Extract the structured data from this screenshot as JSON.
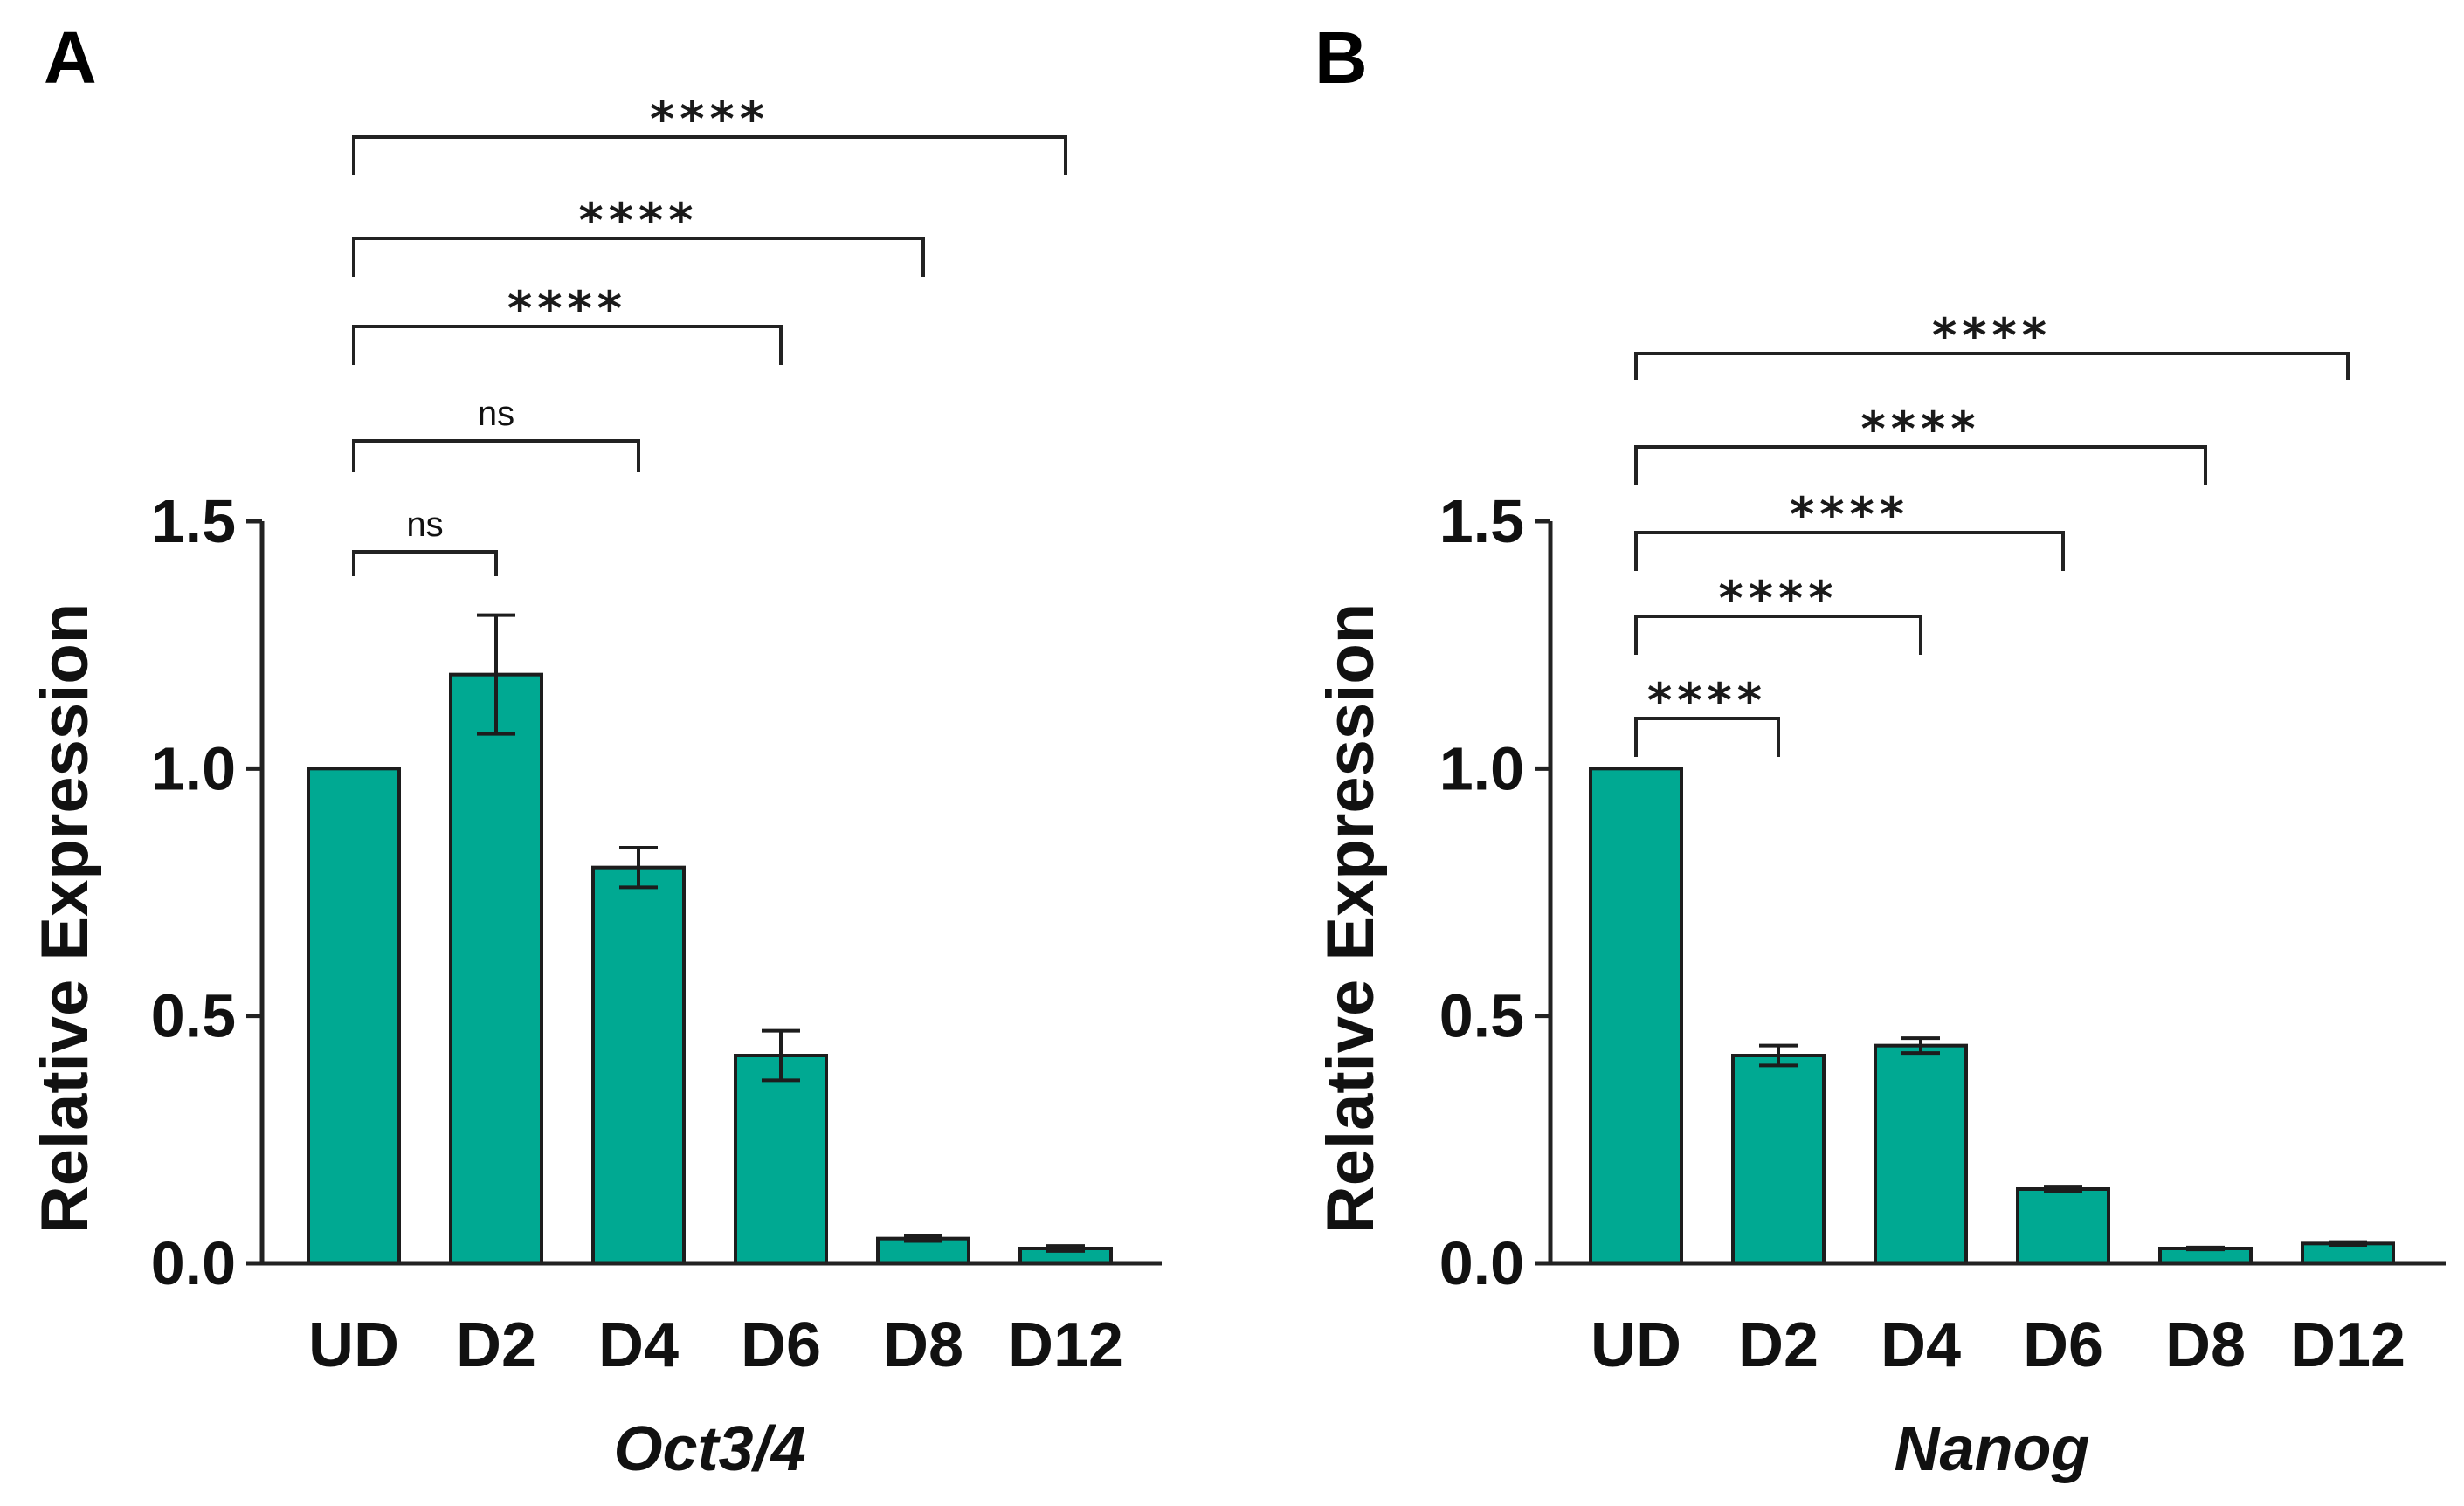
{
  "colors": {
    "bar_fill": "#00a992",
    "axis": "#222222",
    "text": "#111111"
  },
  "chart_data": [
    {
      "panel": "A",
      "type": "bar",
      "categories": [
        "UD",
        "D2",
        "D4",
        "D6",
        "D8",
        "D12"
      ],
      "values": [
        1.0,
        1.19,
        0.8,
        0.42,
        0.05,
        0.03
      ],
      "errors": [
        0.0,
        0.12,
        0.04,
        0.05,
        0.005,
        0.005
      ],
      "ylabel": "Relative Expression",
      "xlabel": "Oct3/4",
      "ylim": [
        0,
        1.5
      ],
      "yticks": [
        "0.0",
        "0.5",
        "1.0",
        "1.5"
      ],
      "comparisons": [
        {
          "from": "UD",
          "to": "D2",
          "label": "ns"
        },
        {
          "from": "UD",
          "to": "D4",
          "label": "ns"
        },
        {
          "from": "UD",
          "to": "D6",
          "label": "****"
        },
        {
          "from": "UD",
          "to": "D8",
          "label": "****"
        },
        {
          "from": "UD",
          "to": "D12",
          "label": "****"
        }
      ]
    },
    {
      "panel": "B",
      "type": "bar",
      "categories": [
        "UD",
        "D2",
        "D4",
        "D6",
        "D8",
        "D12"
      ],
      "values": [
        1.0,
        0.42,
        0.44,
        0.15,
        0.03,
        0.04
      ],
      "errors": [
        0.0,
        0.02,
        0.015,
        0.005,
        0.002,
        0.003
      ],
      "ylabel": "Relative Expression",
      "xlabel": "Nanog",
      "ylim": [
        0,
        1.5
      ],
      "yticks": [
        "0.0",
        "0.5",
        "1.0",
        "1.5"
      ],
      "comparisons": [
        {
          "from": "UD",
          "to": "D2",
          "label": "****"
        },
        {
          "from": "UD",
          "to": "D4",
          "label": "****"
        },
        {
          "from": "UD",
          "to": "D6",
          "label": "****"
        },
        {
          "from": "UD",
          "to": "D8",
          "label": "****"
        },
        {
          "from": "UD",
          "to": "D12",
          "label": "****"
        }
      ]
    }
  ]
}
